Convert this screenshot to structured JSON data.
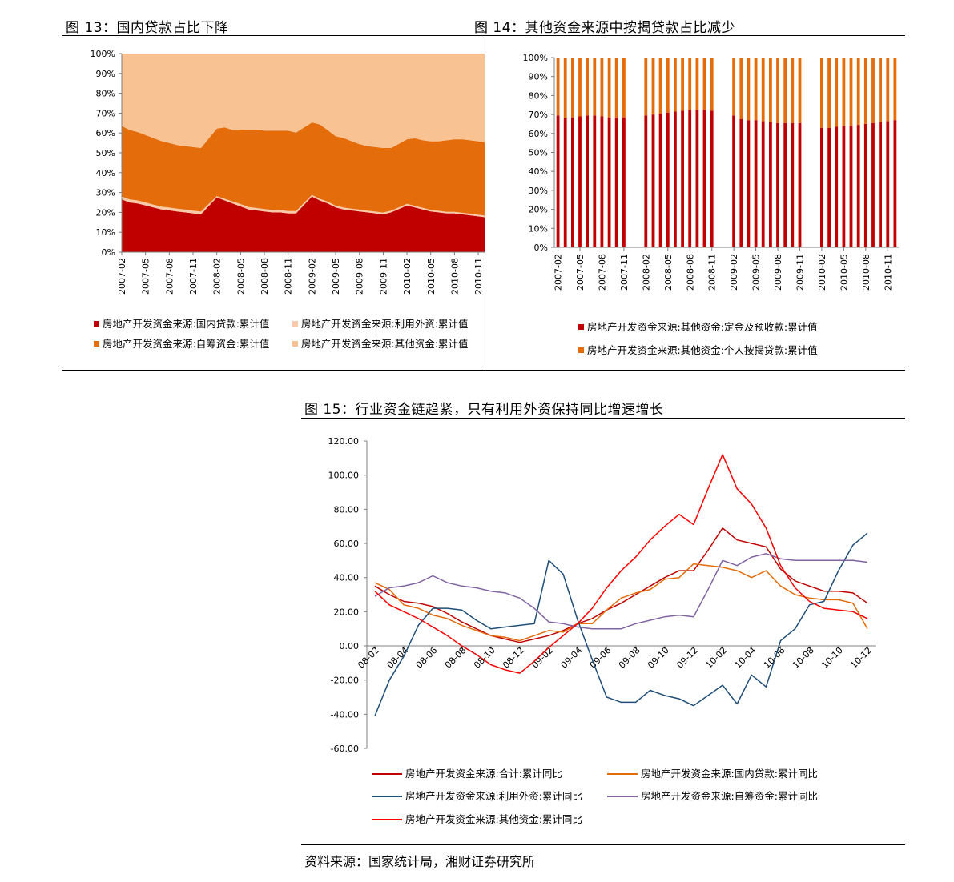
{
  "fig13": {
    "title": "图 13：国内贷款占比下降",
    "chart_data": {
      "type": "area",
      "stacked": true,
      "x": [
        "2007-02",
        "2007-03",
        "2007-04",
        "2007-05",
        "2007-06",
        "2007-07",
        "2007-08",
        "2007-09",
        "2007-10",
        "2007-11",
        "2007-12",
        "2008-01",
        "2008-02",
        "2008-03",
        "2008-04",
        "2008-05",
        "2008-06",
        "2008-07",
        "2008-08",
        "2008-09",
        "2008-10",
        "2008-11",
        "2008-12",
        "2009-01",
        "2009-02",
        "2009-03",
        "2009-04",
        "2009-05",
        "2009-06",
        "2009-07",
        "2009-08",
        "2009-09",
        "2009-10",
        "2009-11",
        "2009-12",
        "2010-01",
        "2010-02",
        "2010-03",
        "2010-04",
        "2010-05",
        "2010-06",
        "2010-07",
        "2010-08",
        "2010-09",
        "2010-10",
        "2010-11",
        "2010-12"
      ],
      "xticks": [
        "2007-02",
        "2007-05",
        "2007-08",
        "2007-11",
        "2008-02",
        "2008-05",
        "2008-08",
        "2008-11",
        "2009-02",
        "2009-05",
        "2009-08",
        "2009-11",
        "2010-02",
        "2010-05",
        "2010-08",
        "2010-11"
      ],
      "yticks": [
        "0%",
        "10%",
        "20%",
        "30%",
        "40%",
        "50%",
        "60%",
        "70%",
        "80%",
        "90%",
        "100%"
      ],
      "ylim": [
        0,
        100
      ],
      "series": [
        {
          "name": "房地产开发资金来源:国内贷款:累计值",
          "color": "#c00000",
          "values": [
            26.5,
            25,
            24.5,
            23.5,
            22.5,
            21.5,
            21,
            20.5,
            20,
            19.5,
            19,
            null,
            27.5,
            26,
            24.5,
            23,
            21.5,
            21,
            20.5,
            20,
            20,
            19.5,
            19.5,
            null,
            28,
            26,
            24.5,
            22.5,
            21.5,
            21,
            20.5,
            20,
            19.5,
            19,
            20,
            null,
            23.5,
            22.5,
            21.5,
            20.5,
            20,
            19.5,
            19.5,
            19,
            18.5,
            18,
            17.5
          ]
        },
        {
          "name": "房地产开发资金来源:利用外资:累计值",
          "color": "#f9c9a8",
          "values": [
            1.5,
            1.5,
            1.5,
            1.5,
            1.4,
            1.4,
            1.4,
            1.4,
            1.4,
            1.4,
            1.4,
            null,
            0.7,
            0.8,
            1,
            1.2,
            1.2,
            1.2,
            1.2,
            1.2,
            1.2,
            1.2,
            1.2,
            null,
            0.8,
            0.8,
            0.9,
            0.9,
            0.9,
            0.9,
            0.9,
            0.9,
            0.9,
            0.9,
            0.9,
            null,
            0.8,
            0.8,
            0.8,
            0.8,
            0.8,
            0.8,
            0.8,
            0.8,
            0.8,
            0.8,
            0.8
          ]
        },
        {
          "name": "房地产开发资金来源:自筹资金:累计值",
          "color": "#e46c0a",
          "values": [
            35.5,
            35,
            34.5,
            34,
            33.5,
            33,
            32.5,
            32,
            32,
            32,
            32,
            null,
            34,
            36,
            36,
            37.5,
            39,
            39.5,
            39.5,
            40,
            40,
            40.5,
            39.5,
            null,
            36.5,
            37.5,
            36,
            35,
            35,
            34,
            33,
            32.5,
            32.5,
            32.5,
            31.5,
            null,
            32.5,
            34,
            34,
            34.5,
            35,
            36,
            36.5,
            37,
            37,
            37,
            37
          ]
        },
        {
          "name": "房地产开发资金来源:其他资金:累计值",
          "color": "#f9c293",
          "values": [
            36.5,
            38.5,
            39.5,
            41,
            42.6,
            44.1,
            45.1,
            46.1,
            46.6,
            47.1,
            47.6,
            null,
            37.8,
            37.2,
            38.5,
            38.3,
            38.3,
            38.3,
            38.8,
            38.8,
            38.8,
            38.8,
            39.8,
            null,
            34.7,
            35.7,
            38.6,
            41.6,
            42.6,
            44.1,
            45.6,
            46.6,
            47.1,
            47.6,
            47.6,
            null,
            43.2,
            42.7,
            43.7,
            44.2,
            44.2,
            43.7,
            43.2,
            43.2,
            43.7,
            44.2,
            44.7
          ]
        }
      ]
    },
    "legend": [
      {
        "label": "房地产开发资金来源:国内贷款:累计值",
        "color": "#c00000"
      },
      {
        "label": "房地产开发资金来源:利用外资:累计值",
        "color": "#f9c9a8"
      },
      {
        "label": "房地产开发资金来源:自筹资金:累计值",
        "color": "#e46c0a"
      },
      {
        "label": "房地产开发资金来源:其他资金:累计值",
        "color": "#f9c293"
      }
    ]
  },
  "fig14": {
    "title": "图 14：其他资金来源中按揭贷款占比减少",
    "chart_data": {
      "type": "bar",
      "stacked": true,
      "x": [
        "2007-02",
        "2007-03",
        "2007-04",
        "2007-05",
        "2007-06",
        "2007-07",
        "2007-08",
        "2007-09",
        "2007-10",
        "2007-11",
        "2007-12",
        "2008-01",
        "2008-02",
        "2008-03",
        "2008-04",
        "2008-05",
        "2008-06",
        "2008-07",
        "2008-08",
        "2008-09",
        "2008-10",
        "2008-11",
        "2008-12",
        "2009-01",
        "2009-02",
        "2009-03",
        "2009-04",
        "2009-05",
        "2009-06",
        "2009-07",
        "2009-08",
        "2009-09",
        "2009-10",
        "2009-11",
        "2009-12",
        "2010-01",
        "2010-02",
        "2010-03",
        "2010-04",
        "2010-05",
        "2010-06",
        "2010-07",
        "2010-08",
        "2010-09",
        "2010-10",
        "2010-11",
        "2010-12"
      ],
      "xticks": [
        "2007-02",
        "2007-05",
        "2007-08",
        "2007-11",
        "2008-02",
        "2008-05",
        "2008-08",
        "2008-11",
        "2009-02",
        "2009-05",
        "2009-08",
        "2009-11",
        "2010-02",
        "2010-05",
        "2010-08",
        "2010-11"
      ],
      "yticks": [
        "0%",
        "10%",
        "20%",
        "30%",
        "40%",
        "50%",
        "60%",
        "70%",
        "80%",
        "90%",
        "100%"
      ],
      "ylim": [
        0,
        100
      ],
      "series": [
        {
          "name": "房地产开发资金来源:其他资金:定金及预收款:累计值",
          "color": "#c00000",
          "values": [
            69.5,
            68,
            68.5,
            69,
            69.5,
            69.5,
            69,
            68.5,
            68.5,
            68.5,
            null,
            null,
            69.5,
            70,
            70.5,
            71,
            71.5,
            72,
            72.5,
            72.5,
            72.5,
            72,
            null,
            null,
            69.5,
            67.5,
            67,
            67,
            66.5,
            66,
            65.5,
            65.5,
            65.5,
            65.5,
            null,
            null,
            63,
            63,
            63.5,
            64,
            64,
            64.5,
            65,
            65.5,
            66,
            66.5,
            67
          ]
        },
        {
          "name": "房地产开发资金来源:其他资金:个人按揭贷款:累计值",
          "color": "#e46c0a",
          "values": [
            30.5,
            32,
            31.5,
            31,
            30.5,
            30.5,
            31,
            31.5,
            31.5,
            31.5,
            null,
            null,
            30.5,
            30,
            29.5,
            29,
            28.5,
            28,
            27.5,
            27.5,
            27.5,
            28,
            null,
            null,
            30.5,
            32.5,
            33,
            33,
            33.5,
            34,
            34.5,
            34.5,
            34.5,
            34.5,
            null,
            null,
            37,
            37,
            36.5,
            36,
            36,
            35.5,
            35,
            34.5,
            34,
            33.5,
            33
          ]
        }
      ]
    },
    "legend": [
      {
        "label": "房地产开发资金来源:其他资金:定金及预收款:累计值",
        "color": "#c00000"
      },
      {
        "label": "房地产开发资金来源:其他资金:个人按揭贷款:累计值",
        "color": "#e46c0a"
      }
    ]
  },
  "fig15": {
    "title": "图 15：行业资金链趋紧，只有利用外资保持同比增速增长",
    "chart_data": {
      "type": "line",
      "x": [
        "08-02",
        "08-03",
        "08-04",
        "08-05",
        "08-06",
        "08-07",
        "08-08",
        "08-09",
        "08-10",
        "08-11",
        "08-12",
        "09-01",
        "09-02",
        "09-03",
        "09-04",
        "09-05",
        "09-06",
        "09-07",
        "09-08",
        "09-09",
        "09-10",
        "09-11",
        "09-12",
        "10-01",
        "10-02",
        "10-03",
        "10-04",
        "10-05",
        "10-06",
        "10-07",
        "10-08",
        "10-09",
        "10-10",
        "10-11",
        "10-12"
      ],
      "xticks": [
        "08-02",
        "08-04",
        "08-06",
        "08-08",
        "08-10",
        "08-12",
        "09-02",
        "09-04",
        "09-06",
        "09-08",
        "09-10",
        "09-12",
        "10-02",
        "10-04",
        "10-06",
        "10-08",
        "10-10",
        "10-12"
      ],
      "yticks": [
        "-60.00",
        "-40.00",
        "-20.00",
        "0.00",
        "20.00",
        "40.00",
        "60.00",
        "80.00",
        "100.00",
        "120.00"
      ],
      "ylim": [
        -60,
        120
      ],
      "series": [
        {
          "name": "房地产开发资金来源:合计:累计同比",
          "color": "#c00000",
          "values": [
            35,
            30,
            26,
            25,
            23,
            19,
            14,
            10,
            6,
            4,
            2,
            4,
            6,
            9,
            13,
            16,
            21,
            25,
            30,
            35,
            40,
            44,
            44,
            56,
            69,
            62,
            60,
            58,
            45,
            38,
            35,
            32,
            32,
            31,
            25
          ]
        },
        {
          "name": "房地产开发资金来源:国内贷款:累计同比",
          "color": "#e46c0a",
          "values": [
            37,
            33,
            24,
            22,
            18,
            16,
            12,
            9,
            6,
            5,
            3,
            6,
            9,
            8,
            13,
            13,
            21,
            28,
            31,
            33,
            39,
            40,
            48,
            47,
            46,
            44,
            40,
            44,
            35,
            30,
            28,
            27,
            27,
            25,
            10
          ]
        },
        {
          "name": "房地产开发资金来源:利用外资:累计同比",
          "color": "#1f4e79",
          "values": [
            -41,
            -20,
            -6,
            12,
            22,
            22,
            21,
            15,
            10,
            11,
            12,
            13,
            50,
            42,
            15,
            -8,
            -30,
            -33,
            -33,
            -26,
            -29,
            -31,
            -35,
            -29,
            -23,
            -34,
            -17,
            -24,
            3,
            10,
            24,
            26,
            44,
            59,
            66
          ]
        },
        {
          "name": "房地产开发资金来源:自筹资金:累计同比",
          "color": "#8064a2",
          "values": [
            29,
            34,
            35,
            37,
            41,
            37,
            35,
            34,
            32,
            31,
            28,
            22,
            14,
            13,
            11,
            10,
            10,
            10,
            13,
            15,
            17,
            18,
            17,
            33,
            50,
            47,
            52,
            54,
            51,
            50,
            50,
            50,
            50,
            50,
            49
          ]
        },
        {
          "name": "房地产开发资金来源:其他资金:累计同比",
          "color": "#ff0000",
          "values": [
            32,
            24,
            20,
            16,
            11,
            6,
            0,
            -5,
            -11,
            -14,
            -16,
            -9,
            -1,
            6,
            13,
            22,
            34,
            44,
            52,
            62,
            70,
            77,
            71,
            92,
            112,
            92,
            83,
            69,
            47,
            34,
            26,
            22,
            21,
            20,
            16
          ]
        }
      ]
    },
    "legend": [
      {
        "label": "房地产开发资金来源:合计:累计同比",
        "color": "#c00000"
      },
      {
        "label": "房地产开发资金来源:国内贷款:累计同比",
        "color": "#e46c0a"
      },
      {
        "label": "房地产开发资金来源:利用外资:累计同比",
        "color": "#1f4e79"
      },
      {
        "label": "房地产开发资金来源:自筹资金:累计同比",
        "color": "#8064a2"
      },
      {
        "label": "房地产开发资金来源:其他资金:累计同比",
        "color": "#ff0000"
      }
    ]
  },
  "source": "资料来源：国家统计局，湘财证券研究所"
}
